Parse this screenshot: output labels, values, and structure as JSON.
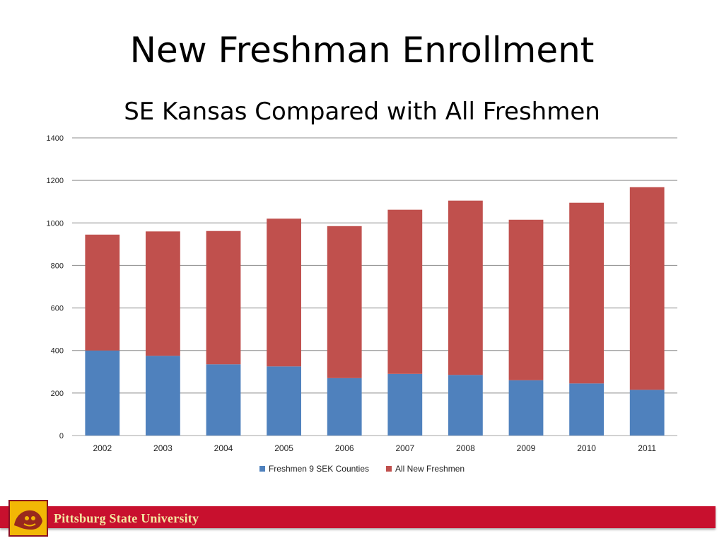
{
  "slide": {
    "title": "New Freshman Enrollment",
    "subtitle": "SE Kansas Compared with All Freshmen"
  },
  "footer": {
    "university_name": "Pittsburg State University",
    "bar_color": "#c8102e",
    "logo_color": "#f2b705"
  },
  "chart_data": {
    "type": "bar",
    "stacked": true,
    "categories": [
      "2002",
      "2003",
      "2004",
      "2005",
      "2006",
      "2007",
      "2008",
      "2009",
      "2010",
      "2011"
    ],
    "series": [
      {
        "name": "Freshmen 9 SEK Counties",
        "color": "#4f81bd",
        "values": [
          400,
          375,
          335,
          325,
          270,
          290,
          285,
          260,
          245,
          215
        ]
      },
      {
        "name": "All New Freshmen",
        "color": "#c0504d",
        "values": [
          545,
          585,
          627,
          695,
          715,
          772,
          820,
          755,
          850,
          953
        ]
      }
    ],
    "yticks": [
      "0",
      "200",
      "400",
      "600",
      "800",
      "1000",
      "1200",
      "1400"
    ],
    "ylim": [
      0,
      1400
    ],
    "grid": true,
    "legend_position": "bottom"
  }
}
